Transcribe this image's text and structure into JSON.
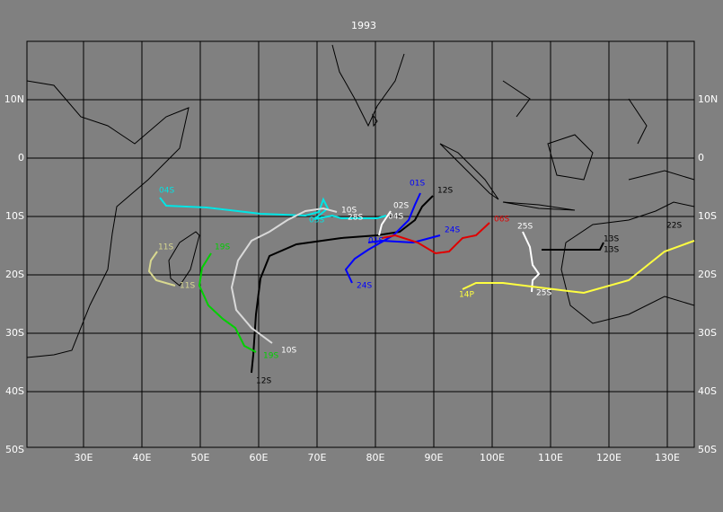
{
  "title": "1993",
  "lat_labels": [
    "10N",
    "0",
    "10S",
    "20S",
    "30S",
    "40S",
    "50S"
  ],
  "lon_labels": [
    "30E",
    "40E",
    "50E",
    "60E",
    "70E",
    "80E",
    "90E",
    "100E",
    "110E",
    "120E",
    "130E"
  ],
  "track_labels": [
    "04S",
    "11S",
    "11S",
    "19S",
    "19S",
    "10S",
    "10S",
    "12S",
    "12S",
    "01S",
    "01S",
    "02S",
    "04S",
    "28S",
    "05S",
    "24S",
    "24S",
    "06S",
    "25S",
    "25S",
    "13S",
    "13S",
    "14P",
    "22S"
  ]
}
